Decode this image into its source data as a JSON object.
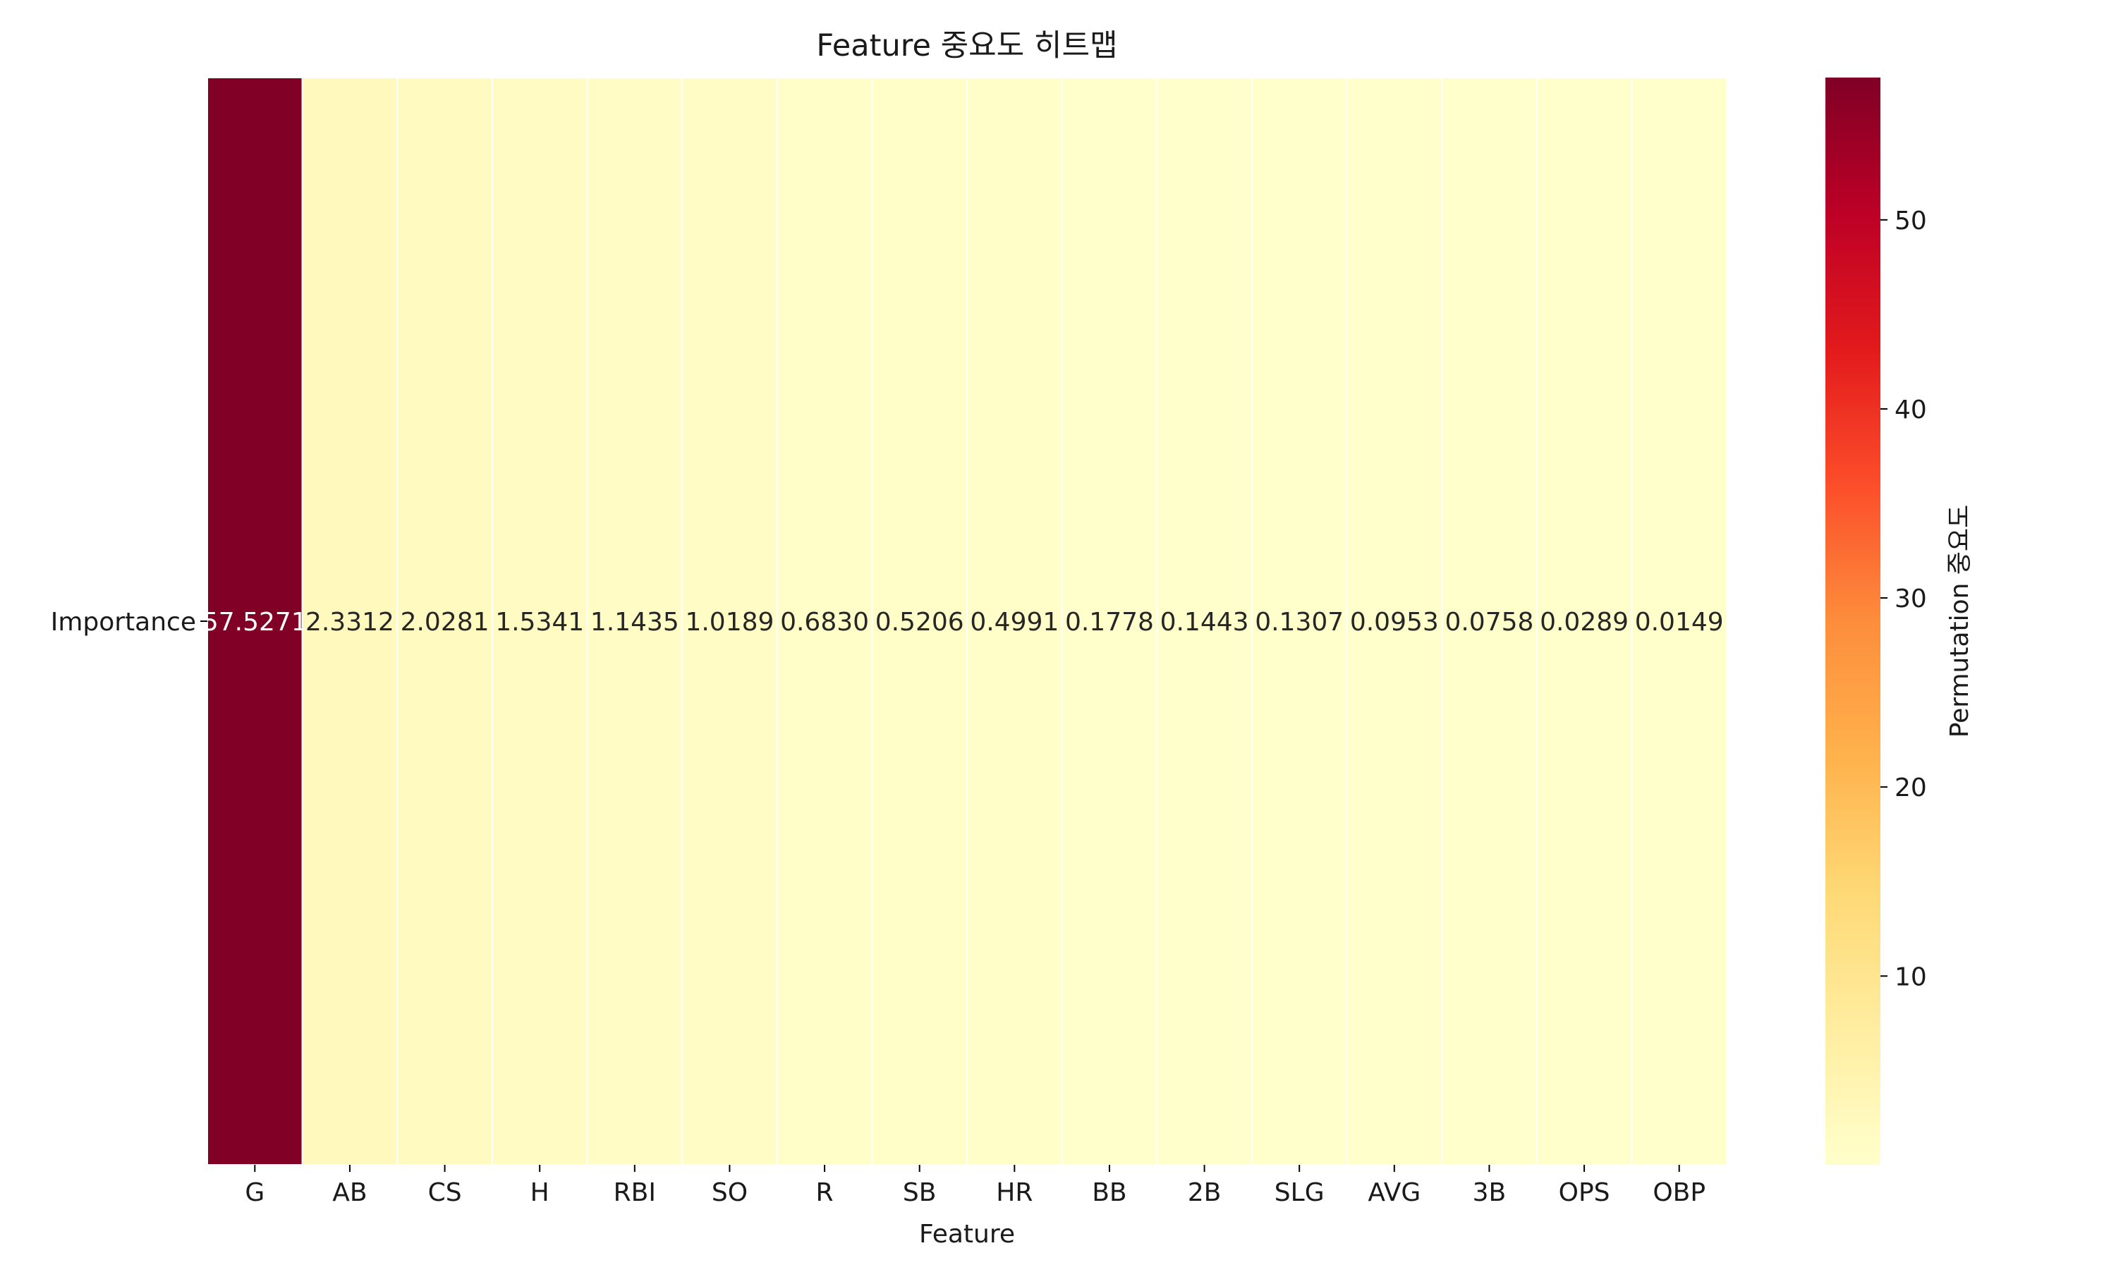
{
  "chart_data": {
    "type": "heatmap",
    "title": "Feature 중요도 히트맵",
    "xlabel": "Feature",
    "ylabel": "",
    "rows": [
      "Importance"
    ],
    "columns": [
      "G",
      "AB",
      "CS",
      "H",
      "RBI",
      "SO",
      "R",
      "SB",
      "HR",
      "BB",
      "2B",
      "SLG",
      "AVG",
      "3B",
      "OPS",
      "OBP"
    ],
    "values": [
      [
        57.5271,
        2.3312,
        2.0281,
        1.5341,
        1.1435,
        1.0189,
        0.683,
        0.5206,
        0.4991,
        0.1778,
        0.1443,
        0.1307,
        0.0953,
        0.0758,
        0.0289,
        0.0149
      ]
    ],
    "value_labels": [
      "57.5271",
      "2.3312",
      "2.0281",
      "1.5341",
      "1.1435",
      "1.0189",
      "0.6830",
      "0.5206",
      "0.4991",
      "0.1778",
      "0.1443",
      "0.1307",
      "0.0953",
      "0.0758",
      "0.0289",
      "0.0149"
    ],
    "colormap": "YlOrRd",
    "colormap_stops": [
      "#ffffcc",
      "#ffeda0",
      "#fed976",
      "#feb24c",
      "#fd8d3c",
      "#fc4e2a",
      "#e31a1c",
      "#bd0026",
      "#800026"
    ],
    "colorbar": {
      "label": "Permutation 중요도",
      "ticks": [
        10,
        20,
        30,
        40,
        50
      ],
      "tick_labels": [
        "10",
        "20",
        "30",
        "40",
        "50"
      ],
      "range": [
        0.0149,
        57.5271
      ]
    },
    "grid": false,
    "cell_border_color": "#ffffff"
  }
}
